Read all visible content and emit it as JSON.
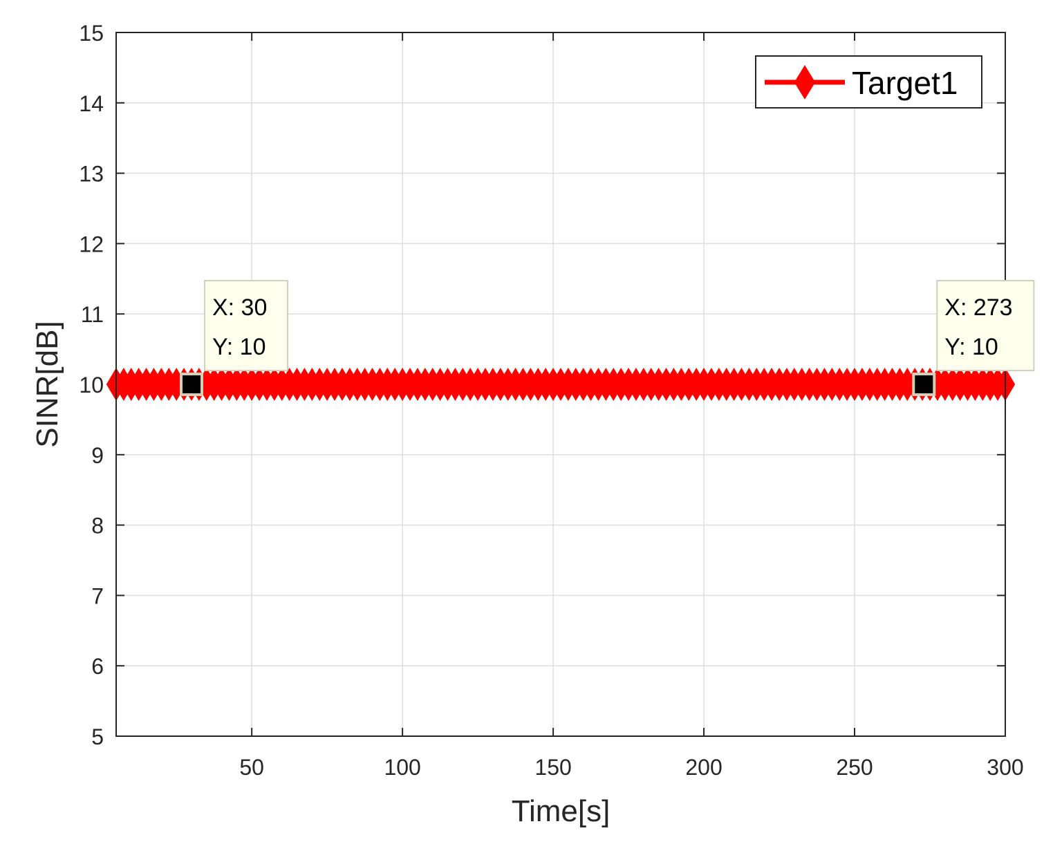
{
  "chart_data": {
    "type": "line",
    "xlabel": "Time[s]",
    "ylabel": "SINR[dB]",
    "xlim": [
      5,
      300
    ],
    "ylim": [
      5,
      15
    ],
    "xticks": [
      50,
      100,
      150,
      200,
      250,
      300
    ],
    "yticks": [
      5,
      6,
      7,
      8,
      9,
      10,
      11,
      12,
      13,
      14,
      15
    ],
    "grid": true,
    "legend_position": "top-right",
    "series": [
      {
        "name": "Target1",
        "color": "#ff0000",
        "marker": "diamond",
        "x_start": 5,
        "x_end": 300,
        "x_step": 2.5,
        "y_constant": 10
      }
    ],
    "datatips": [
      {
        "x": 30,
        "y": 10,
        "x_text": "X: 30",
        "y_text": "Y: 10"
      },
      {
        "x": 273,
        "y": 10,
        "x_text": "X: 273",
        "y_text": "Y: 10"
      }
    ]
  }
}
